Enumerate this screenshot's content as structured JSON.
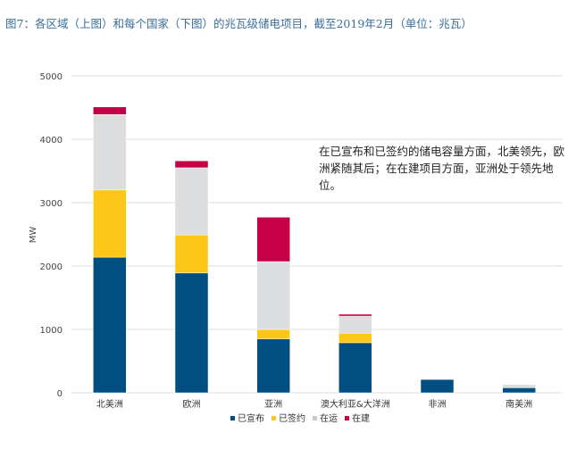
{
  "title": "图7：各区域（上图）和每个国家（下图）的兆瓦级储电项目，截至2019年2月（单位：兆瓦）",
  "annotation": "在已宣布和已签约的储电容量方面，北美领先，欧洲紧随其后；在在建项目方面，亚洲处于领先地位。",
  "chart_data": {
    "type": "bar",
    "stacked": true,
    "title": "",
    "xlabel": "",
    "ylabel": "MW",
    "ylim": [
      0,
      5000
    ],
    "yticks": [
      0,
      1000,
      2000,
      3000,
      4000,
      5000
    ],
    "grid": true,
    "legend_position": "bottom",
    "categories": [
      "北美洲",
      "欧洲",
      "亚洲",
      "澳大利亚&大洋洲",
      "非洲",
      "南美洲"
    ],
    "series": [
      {
        "name": "已宣布",
        "color": "#004f80",
        "values": [
          2140,
          1890,
          850,
          790,
          210,
          80
        ]
      },
      {
        "name": "已签约",
        "color": "#fec619",
        "values": [
          1060,
          600,
          150,
          150,
          0,
          0
        ]
      },
      {
        "name": "在运",
        "color": "#dcdddf",
        "values": [
          1190,
          1060,
          1070,
          270,
          0,
          50
        ]
      },
      {
        "name": "在建",
        "color": "#c50046",
        "values": [
          120,
          110,
          700,
          30,
          0,
          0
        ]
      }
    ]
  }
}
